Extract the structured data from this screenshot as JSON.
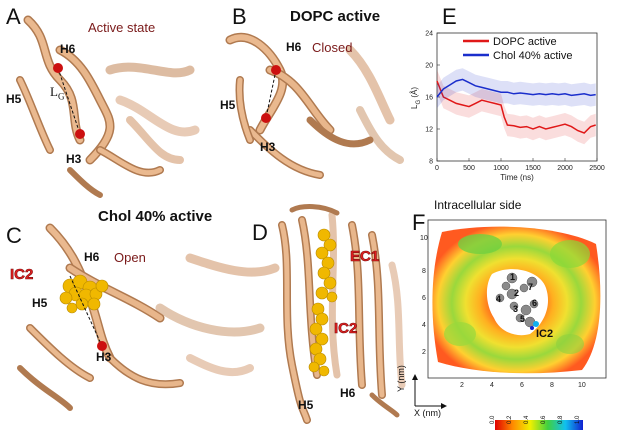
{
  "panels": {
    "A": {
      "letter": "A",
      "state": "Active state",
      "h6": "H6",
      "h5": "H5",
      "h3": "H3",
      "lg": "L",
      "lg_sub": "G"
    },
    "B": {
      "letter": "B",
      "title": "DOPC active",
      "state": "Closed",
      "h6": "H6",
      "h5": "H5",
      "h3": "H3"
    },
    "C": {
      "letter": "C",
      "title": "Chol 40% active",
      "state": "Open",
      "h6": "H6",
      "h5": "H5",
      "h3": "H3",
      "ic2": "IC2"
    },
    "D": {
      "letter": "D",
      "ec1": "EC1",
      "ic2": "IC2",
      "h5": "H5",
      "h6": "H6"
    },
    "E": {
      "letter": "E"
    },
    "F": {
      "letter": "F",
      "title": "Intracellular side",
      "ic2": "IC2",
      "residue_labels": [
        "1",
        "2",
        "3",
        "4",
        "5",
        "6",
        "7"
      ],
      "y_axis_label": "Y (nm)",
      "x_axis_label": "X (nm)",
      "x_ticks": [
        "2",
        "4",
        "6",
        "8",
        "10"
      ],
      "y_ticks": [
        "2",
        "4",
        "6",
        "8",
        "10"
      ],
      "colorbar_ticks": [
        "0.0",
        "0.2",
        "0.4",
        "0.6",
        "0.8",
        "1.0"
      ]
    }
  },
  "colors": {
    "protein": "#e6b48c",
    "protein_dark": "#b07a50",
    "red_sphere": "#cc1010",
    "chol_yellow": "#f0b800",
    "dopc_series": "#e01818",
    "chol_series": "#1a2ecc"
  },
  "chart_data": {
    "type": "line",
    "title": "",
    "xlabel": "Time (ns)",
    "ylabel": "L",
    "ylabel_sub": "G",
    "ylabel_unit": "(Å)",
    "xlim": [
      0,
      2500
    ],
    "ylim": [
      8,
      24
    ],
    "x_ticks": [
      0,
      500,
      1000,
      1500,
      2000,
      2500
    ],
    "y_ticks": [
      8,
      12,
      16,
      20,
      24
    ],
    "legend_position": "top-right",
    "series": [
      {
        "name": "DOPC active",
        "x": [
          0,
          50,
          100,
          200,
          300,
          400,
          500,
          600,
          700,
          800,
          900,
          1000,
          1050,
          1100,
          1200,
          1300,
          1400,
          1500,
          1600,
          1700,
          1800,
          1900,
          2000,
          2100,
          2200,
          2300,
          2400,
          2480
        ],
        "values": [
          18,
          17,
          16,
          15.6,
          15.2,
          15.0,
          14.8,
          15.2,
          15.6,
          15.4,
          15.2,
          15.0,
          13.5,
          12.5,
          12.4,
          12.2,
          12.3,
          12.0,
          12.3,
          12.0,
          12.2,
          12.4,
          12.6,
          12.3,
          11.8,
          11.5,
          12.3,
          12.5
        ]
      },
      {
        "name": "Chol 40% active",
        "x": [
          0,
          50,
          100,
          200,
          300,
          400,
          500,
          600,
          700,
          800,
          900,
          1000,
          1100,
          1200,
          1300,
          1400,
          1500,
          1600,
          1700,
          1800,
          1900,
          2000,
          2100,
          2200,
          2300,
          2400,
          2480
        ],
        "values": [
          16,
          16.5,
          17,
          17.5,
          18,
          18.2,
          17.8,
          17.4,
          17.2,
          17.0,
          16.8,
          16.6,
          16.6,
          16.4,
          16.5,
          16.4,
          16.3,
          16.4,
          16.3,
          16.4,
          16.3,
          16.4,
          16.2,
          16.3,
          16.4,
          16.2,
          16.3
        ]
      }
    ]
  }
}
